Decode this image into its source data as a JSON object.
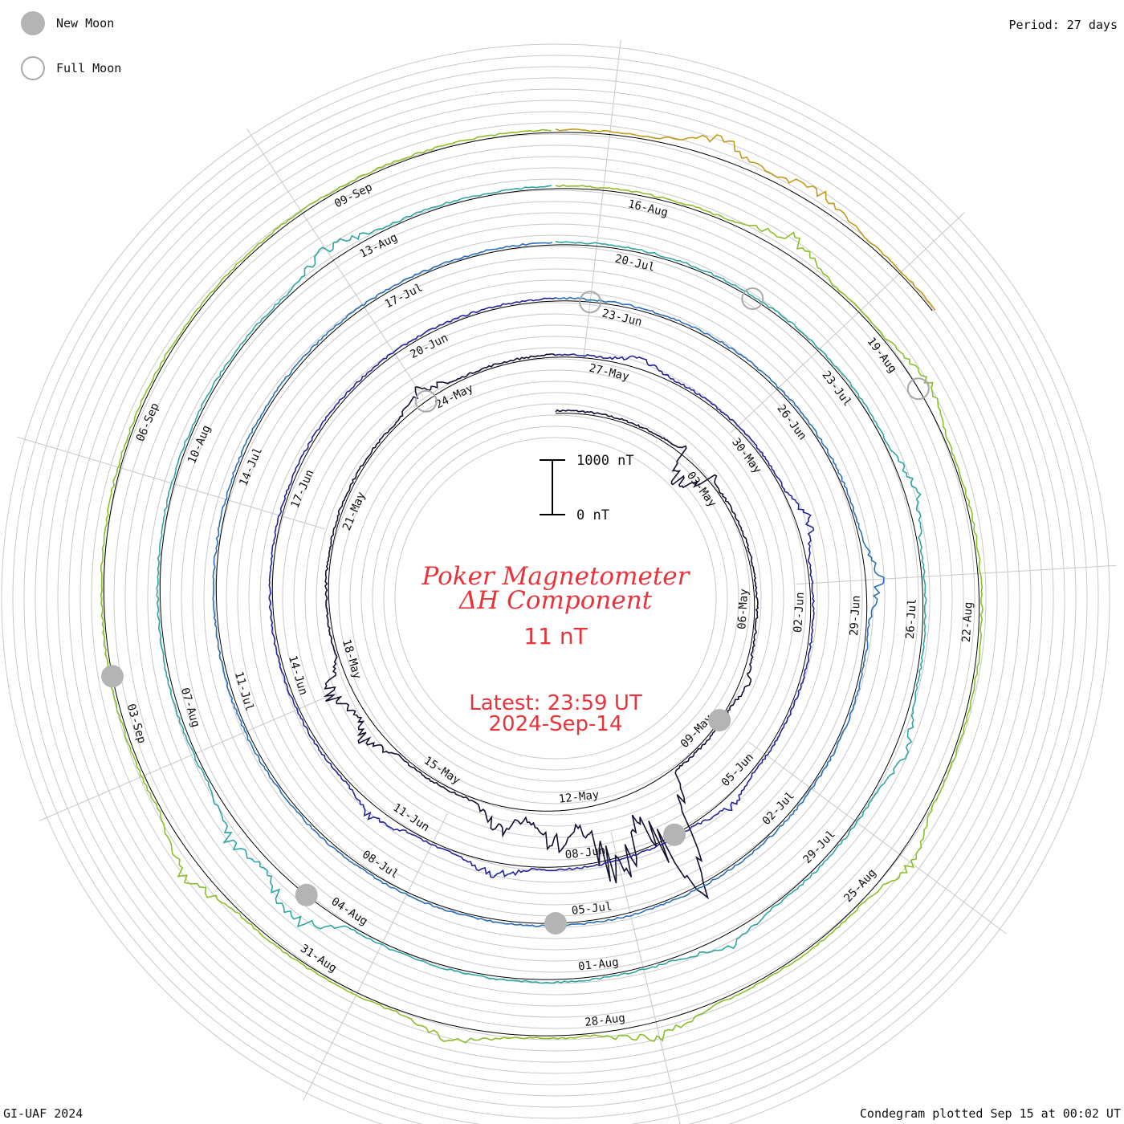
{
  "header": {
    "period": "Period: 27 days"
  },
  "legend": {
    "new_moon": "New Moon",
    "full_moon": "Full Moon"
  },
  "footer": {
    "left": "GI-UAF 2024",
    "right": "Condegram plotted Sep 15 at 00:02 UT"
  },
  "center": {
    "title_line1": "Poker Magnetometer",
    "title_line2": "ΔH Component",
    "value": "11 nT",
    "latest_line1": "Latest: 23:59 UT",
    "latest_line2": "2024-Sep-14"
  },
  "scale_bar": {
    "top_label": "1000 nT",
    "bottom_label": "0 nT"
  },
  "colors": {
    "title": "#e8333a",
    "grid": "#c8c8c8",
    "baseline": "#000000",
    "new_moon": "#b4b4b4",
    "full_moon_stroke": "#a9a9a9"
  },
  "chart_data": {
    "type": "line",
    "subtype": "condegram-spiral",
    "period_days": 27,
    "start_date": "2024-04-29",
    "end_date": "2024-09-14",
    "latest_value_nT": 11,
    "scale_nT": [
      0,
      1000
    ],
    "grid": true,
    "date_labels": [
      {
        "date": "2024-05-03",
        "label": "03-May"
      },
      {
        "date": "2024-05-06",
        "label": "06-May"
      },
      {
        "date": "2024-05-09",
        "label": "09-May"
      },
      {
        "date": "2024-05-12",
        "label": "12-May"
      },
      {
        "date": "2024-05-15",
        "label": "15-May"
      },
      {
        "date": "2024-05-18",
        "label": "18-May"
      },
      {
        "date": "2024-05-21",
        "label": "21-May"
      },
      {
        "date": "2024-05-24",
        "label": "24-May"
      },
      {
        "date": "2024-05-27",
        "label": "27-May"
      },
      {
        "date": "2024-05-30",
        "label": "30-May"
      },
      {
        "date": "2024-06-02",
        "label": "02-Jun"
      },
      {
        "date": "2024-06-05",
        "label": "05-Jun"
      },
      {
        "date": "2024-06-08",
        "label": "08-Jun"
      },
      {
        "date": "2024-06-11",
        "label": "11-Jun"
      },
      {
        "date": "2024-06-14",
        "label": "14-Jun"
      },
      {
        "date": "2024-06-17",
        "label": "17-Jun"
      },
      {
        "date": "2024-06-20",
        "label": "20-Jun"
      },
      {
        "date": "2024-06-23",
        "label": "23-Jun"
      },
      {
        "date": "2024-06-26",
        "label": "26-Jun"
      },
      {
        "date": "2024-06-29",
        "label": "29-Jun"
      },
      {
        "date": "2024-07-02",
        "label": "02-Jul"
      },
      {
        "date": "2024-07-05",
        "label": "05-Jul"
      },
      {
        "date": "2024-07-08",
        "label": "08-Jul"
      },
      {
        "date": "2024-07-11",
        "label": "11-Jul"
      },
      {
        "date": "2024-07-14",
        "label": "14-Jul"
      },
      {
        "date": "2024-07-17",
        "label": "17-Jul"
      },
      {
        "date": "2024-07-20",
        "label": "20-Jul"
      },
      {
        "date": "2024-07-23",
        "label": "23-Jul"
      },
      {
        "date": "2024-07-26",
        "label": "26-Jul"
      },
      {
        "date": "2024-07-29",
        "label": "29-Jul"
      },
      {
        "date": "2024-08-01",
        "label": "01-Aug"
      },
      {
        "date": "2024-08-04",
        "label": "04-Aug"
      },
      {
        "date": "2024-08-07",
        "label": "07-Aug"
      },
      {
        "date": "2024-08-10",
        "label": "10-Aug"
      },
      {
        "date": "2024-08-13",
        "label": "13-Aug"
      },
      {
        "date": "2024-08-16",
        "label": "16-Aug"
      },
      {
        "date": "2024-08-19",
        "label": "19-Aug"
      },
      {
        "date": "2024-08-22",
        "label": "22-Aug"
      },
      {
        "date": "2024-08-25",
        "label": "25-Aug"
      },
      {
        "date": "2024-08-28",
        "label": "28-Aug"
      },
      {
        "date": "2024-08-31",
        "label": "31-Aug"
      },
      {
        "date": "2024-09-03",
        "label": "03-Sep"
      },
      {
        "date": "2024-09-06",
        "label": "06-Sep"
      },
      {
        "date": "2024-09-09",
        "label": "09-Sep"
      }
    ],
    "new_moons": [
      "2024-05-08",
      "2024-06-06",
      "2024-07-05",
      "2024-08-04",
      "2024-09-03"
    ],
    "full_moons": [
      "2024-05-23",
      "2024-06-22",
      "2024-07-21",
      "2024-08-19"
    ],
    "disturbances": [
      {
        "date": "2024-05-02",
        "peak_nT": 600,
        "note": "dip"
      },
      {
        "date": "2024-05-07",
        "peak_nT": 150
      },
      {
        "date": "2024-05-10",
        "peak_nT": 2500
      },
      {
        "date": "2024-05-11",
        "peak_nT": 2200
      },
      {
        "date": "2024-05-12",
        "peak_nT": 900
      },
      {
        "date": "2024-05-13",
        "peak_nT": 600
      },
      {
        "date": "2024-05-16",
        "peak_nT": 400
      },
      {
        "date": "2024-05-17",
        "peak_nT": 600
      },
      {
        "date": "2024-05-23",
        "peak_nT": 300
      },
      {
        "date": "2024-05-27",
        "peak_nT": 200
      },
      {
        "date": "2024-05-31",
        "peak_nT": 300
      },
      {
        "date": "2024-06-05",
        "peak_nT": 200
      },
      {
        "date": "2024-06-09",
        "peak_nT": 300
      },
      {
        "date": "2024-06-11",
        "peak_nT": 250
      },
      {
        "date": "2024-06-28",
        "peak_nT": 300
      },
      {
        "date": "2024-07-24",
        "peak_nT": 250
      },
      {
        "date": "2024-07-27",
        "peak_nT": 250
      },
      {
        "date": "2024-07-30",
        "peak_nT": 250
      },
      {
        "date": "2024-08-04",
        "peak_nT": 700
      },
      {
        "date": "2024-08-05",
        "peak_nT": 400
      },
      {
        "date": "2024-08-12",
        "peak_nT": 300
      },
      {
        "date": "2024-08-17",
        "peak_nT": 350
      },
      {
        "date": "2024-08-19",
        "peak_nT": 250
      },
      {
        "date": "2024-08-24",
        "peak_nT": 300
      },
      {
        "date": "2024-08-27",
        "peak_nT": 350
      },
      {
        "date": "2024-08-29",
        "peak_nT": 300
      },
      {
        "date": "2024-09-01",
        "peak_nT": 400
      },
      {
        "date": "2024-09-12",
        "peak_nT": 400
      },
      {
        "date": "2024-09-13",
        "peak_nT": 300
      }
    ]
  }
}
